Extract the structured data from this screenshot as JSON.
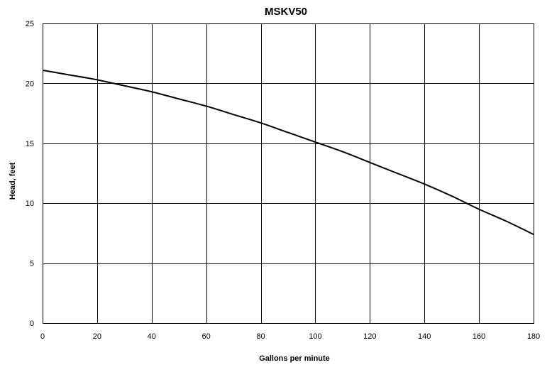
{
  "chart_data": {
    "type": "line",
    "title": "MSKV50",
    "xlabel": "Gallons per minute",
    "ylabel": "Head, feet",
    "xlim": [
      0,
      180
    ],
    "ylim": [
      0,
      25
    ],
    "x_ticks": [
      0,
      20,
      40,
      60,
      80,
      100,
      120,
      140,
      160,
      180
    ],
    "y_ticks": [
      0,
      5,
      10,
      15,
      20,
      25
    ],
    "grid": true,
    "series": [
      {
        "x": [
          0,
          10,
          20,
          30,
          40,
          50,
          60,
          70,
          80,
          90,
          100,
          110,
          120,
          130,
          140,
          150,
          160,
          170,
          180
        ],
        "y": [
          21.1,
          20.7,
          20.3,
          19.8,
          19.3,
          18.7,
          18.1,
          17.4,
          16.7,
          15.9,
          15.1,
          14.3,
          13.4,
          12.5,
          11.6,
          10.6,
          9.5,
          8.5,
          7.4
        ]
      }
    ]
  }
}
